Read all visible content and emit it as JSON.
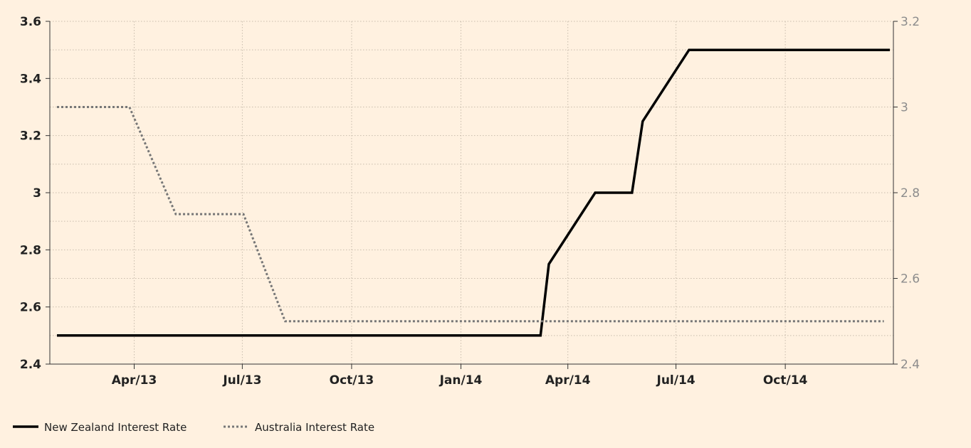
{
  "chart_data": {
    "type": "line",
    "x_axis": {
      "ticks": [
        "2013-04-01",
        "2013-07-01",
        "2013-10-01",
        "2014-01-01",
        "2014-04-01",
        "2014-07-01",
        "2014-10-01"
      ],
      "tick_labels": [
        "Apr/13",
        "Jul/13",
        "Oct/13",
        "Jan/14",
        "Apr/14",
        "Jul/14",
        "Oct/14"
      ],
      "range": [
        "2013-01-20",
        "2014-12-31"
      ]
    },
    "y_left": {
      "range": [
        2.4,
        3.6
      ],
      "ticks": [
        2.4,
        2.6,
        2.8,
        3,
        3.2,
        3.4,
        3.6
      ],
      "tick_labels": [
        "2.4",
        "2.6",
        "2.8",
        "3",
        "3.2",
        "3.4",
        "3.6"
      ]
    },
    "y_right": {
      "range": [
        2.4,
        3.2
      ],
      "ticks": [
        2.4,
        2.6,
        2.8,
        3,
        3.2
      ],
      "tick_labels": [
        "2.4",
        "2.6",
        "2.8",
        "3",
        "3.2"
      ]
    },
    "grid": true,
    "legend_position": "bottom-left",
    "series": [
      {
        "name": "New Zealand Interest Rate",
        "axis": "left",
        "style": "solid",
        "color": "#000000",
        "points": [
          [
            "2013-01-26",
            2.5
          ],
          [
            "2014-03-09",
            2.5
          ],
          [
            "2014-03-16",
            2.75
          ],
          [
            "2014-04-24",
            3.0
          ],
          [
            "2014-05-25",
            3.0
          ],
          [
            "2014-06-03",
            3.25
          ],
          [
            "2014-07-12",
            3.5
          ],
          [
            "2014-12-28",
            3.5
          ]
        ]
      },
      {
        "name": "Australia Interest Rate",
        "axis": "right",
        "style": "dotted",
        "color": "#777777",
        "points": [
          [
            "2013-01-26",
            3.0
          ],
          [
            "2013-03-28",
            3.0
          ],
          [
            "2013-05-06",
            2.75
          ],
          [
            "2013-07-02",
            2.75
          ],
          [
            "2013-08-06",
            2.5
          ],
          [
            "2014-12-23",
            2.5
          ]
        ]
      }
    ]
  }
}
